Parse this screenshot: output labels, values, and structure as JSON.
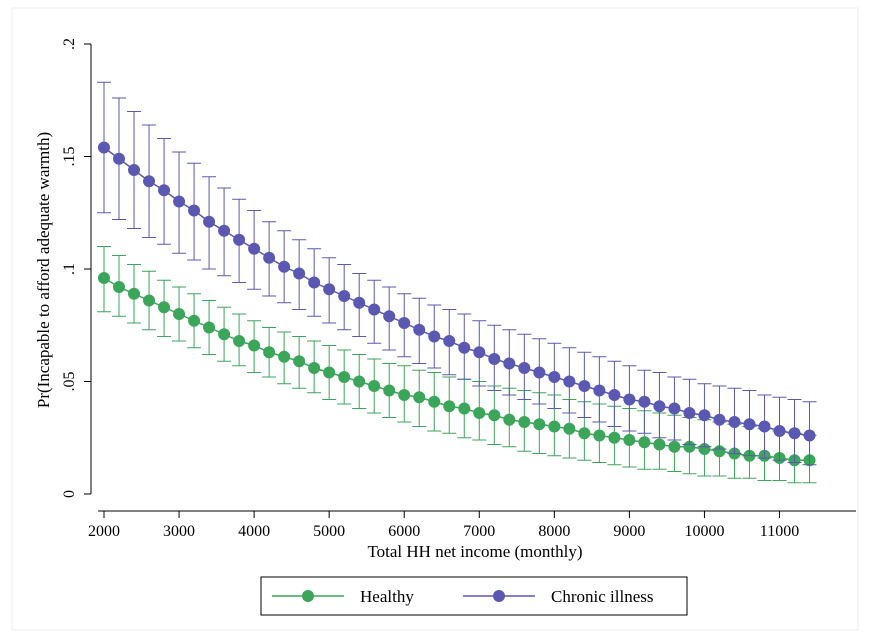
{
  "chart_data": {
    "type": "scatter",
    "title": "",
    "xlabel": "Total HH net income (monthly)",
    "ylabel": "Pr(Incapable to afford adequate warmth)",
    "xlim": [
      1900,
      11650
    ],
    "ylim": [
      0,
      0.2
    ],
    "x_ticks": [
      2000,
      3000,
      4000,
      5000,
      6000,
      7000,
      8000,
      9000,
      10000,
      11000
    ],
    "x_tick_labels": [
      "2000",
      "3000",
      "4000",
      "5000",
      "6000",
      "7000",
      "8000",
      "9000",
      "10000",
      "11000"
    ],
    "y_ticks": [
      0,
      0.05,
      0.1,
      0.15,
      0.2
    ],
    "y_tick_labels": [
      "0",
      ".05",
      ".1",
      ".15",
      ".2"
    ],
    "grid": false,
    "legend_position": "bottom-center",
    "x": [
      2000,
      2200,
      2400,
      2600,
      2800,
      3000,
      3200,
      3400,
      3600,
      3800,
      4000,
      4200,
      4400,
      4600,
      4800,
      5000,
      5200,
      5400,
      5600,
      5800,
      6000,
      6200,
      6400,
      6600,
      6800,
      7000,
      7200,
      7400,
      7600,
      7800,
      8000,
      8200,
      8400,
      8600,
      8800,
      9000,
      9200,
      9400,
      9600,
      9800,
      10000,
      10200,
      10400,
      10600,
      10800,
      11000,
      11200,
      11400
    ],
    "series": [
      {
        "name": "Healthy",
        "color": "#3ba55a",
        "marker": "circle",
        "point_ci": [
          [
            0.096,
            0.081,
            0.11
          ],
          [
            0.092,
            0.079,
            0.106
          ],
          [
            0.089,
            0.076,
            0.102
          ],
          [
            0.086,
            0.073,
            0.099
          ],
          [
            0.083,
            0.07,
            0.095
          ],
          [
            0.08,
            0.068,
            0.092
          ],
          [
            0.077,
            0.065,
            0.089
          ],
          [
            0.074,
            0.062,
            0.086
          ],
          [
            0.071,
            0.059,
            0.083
          ],
          [
            0.068,
            0.057,
            0.08
          ],
          [
            0.066,
            0.054,
            0.077
          ],
          [
            0.063,
            0.052,
            0.074
          ],
          [
            0.061,
            0.049,
            0.072
          ],
          [
            0.059,
            0.047,
            0.07
          ],
          [
            0.056,
            0.045,
            0.068
          ],
          [
            0.054,
            0.042,
            0.066
          ],
          [
            0.052,
            0.04,
            0.064
          ],
          [
            0.05,
            0.038,
            0.062
          ],
          [
            0.048,
            0.036,
            0.06
          ],
          [
            0.046,
            0.034,
            0.058
          ],
          [
            0.044,
            0.032,
            0.057
          ],
          [
            0.043,
            0.03,
            0.055
          ],
          [
            0.041,
            0.028,
            0.054
          ],
          [
            0.039,
            0.027,
            0.052
          ],
          [
            0.038,
            0.025,
            0.051
          ],
          [
            0.036,
            0.024,
            0.05
          ],
          [
            0.035,
            0.022,
            0.048
          ],
          [
            0.033,
            0.021,
            0.047
          ],
          [
            0.032,
            0.019,
            0.046
          ],
          [
            0.031,
            0.018,
            0.045
          ],
          [
            0.03,
            0.017,
            0.044
          ],
          [
            0.029,
            0.016,
            0.042
          ],
          [
            0.027,
            0.015,
            0.041
          ],
          [
            0.026,
            0.014,
            0.04
          ],
          [
            0.025,
            0.013,
            0.039
          ],
          [
            0.024,
            0.012,
            0.038
          ],
          [
            0.023,
            0.011,
            0.037
          ],
          [
            0.022,
            0.011,
            0.036
          ],
          [
            0.021,
            0.01,
            0.035
          ],
          [
            0.021,
            0.009,
            0.034
          ],
          [
            0.02,
            0.008,
            0.033
          ],
          [
            0.019,
            0.008,
            0.032
          ],
          [
            0.018,
            0.007,
            0.031
          ],
          [
            0.017,
            0.007,
            0.03
          ],
          [
            0.017,
            0.006,
            0.029
          ],
          [
            0.016,
            0.006,
            0.028
          ],
          [
            0.015,
            0.005,
            0.027
          ],
          [
            0.015,
            0.005,
            0.026
          ]
        ]
      },
      {
        "name": "Chronic illness",
        "color": "#5a58b0",
        "marker": "circle",
        "point_ci": [
          [
            0.154,
            0.125,
            0.183
          ],
          [
            0.149,
            0.122,
            0.176
          ],
          [
            0.144,
            0.118,
            0.17
          ],
          [
            0.139,
            0.114,
            0.164
          ],
          [
            0.135,
            0.111,
            0.158
          ],
          [
            0.13,
            0.107,
            0.152
          ],
          [
            0.126,
            0.104,
            0.147
          ],
          [
            0.121,
            0.1,
            0.141
          ],
          [
            0.117,
            0.097,
            0.136
          ],
          [
            0.113,
            0.094,
            0.131
          ],
          [
            0.109,
            0.091,
            0.126
          ],
          [
            0.105,
            0.088,
            0.121
          ],
          [
            0.101,
            0.085,
            0.117
          ],
          [
            0.098,
            0.082,
            0.113
          ],
          [
            0.094,
            0.079,
            0.109
          ],
          [
            0.091,
            0.076,
            0.105
          ],
          [
            0.088,
            0.073,
            0.102
          ],
          [
            0.085,
            0.07,
            0.098
          ],
          [
            0.082,
            0.067,
            0.095
          ],
          [
            0.079,
            0.064,
            0.092
          ],
          [
            0.076,
            0.061,
            0.089
          ],
          [
            0.073,
            0.058,
            0.087
          ],
          [
            0.07,
            0.056,
            0.084
          ],
          [
            0.068,
            0.053,
            0.082
          ],
          [
            0.065,
            0.051,
            0.08
          ],
          [
            0.063,
            0.048,
            0.077
          ],
          [
            0.06,
            0.046,
            0.075
          ],
          [
            0.058,
            0.044,
            0.073
          ],
          [
            0.056,
            0.042,
            0.071
          ],
          [
            0.054,
            0.04,
            0.069
          ],
          [
            0.052,
            0.038,
            0.067
          ],
          [
            0.05,
            0.036,
            0.065
          ],
          [
            0.048,
            0.034,
            0.063
          ],
          [
            0.046,
            0.032,
            0.061
          ],
          [
            0.044,
            0.03,
            0.059
          ],
          [
            0.042,
            0.028,
            0.057
          ],
          [
            0.041,
            0.027,
            0.055
          ],
          [
            0.039,
            0.025,
            0.054
          ],
          [
            0.038,
            0.024,
            0.052
          ],
          [
            0.036,
            0.022,
            0.051
          ],
          [
            0.035,
            0.021,
            0.049
          ],
          [
            0.033,
            0.02,
            0.048
          ],
          [
            0.032,
            0.018,
            0.047
          ],
          [
            0.031,
            0.017,
            0.046
          ],
          [
            0.03,
            0.016,
            0.044
          ],
          [
            0.028,
            0.015,
            0.043
          ],
          [
            0.027,
            0.014,
            0.042
          ],
          [
            0.026,
            0.013,
            0.041
          ]
        ]
      }
    ]
  }
}
